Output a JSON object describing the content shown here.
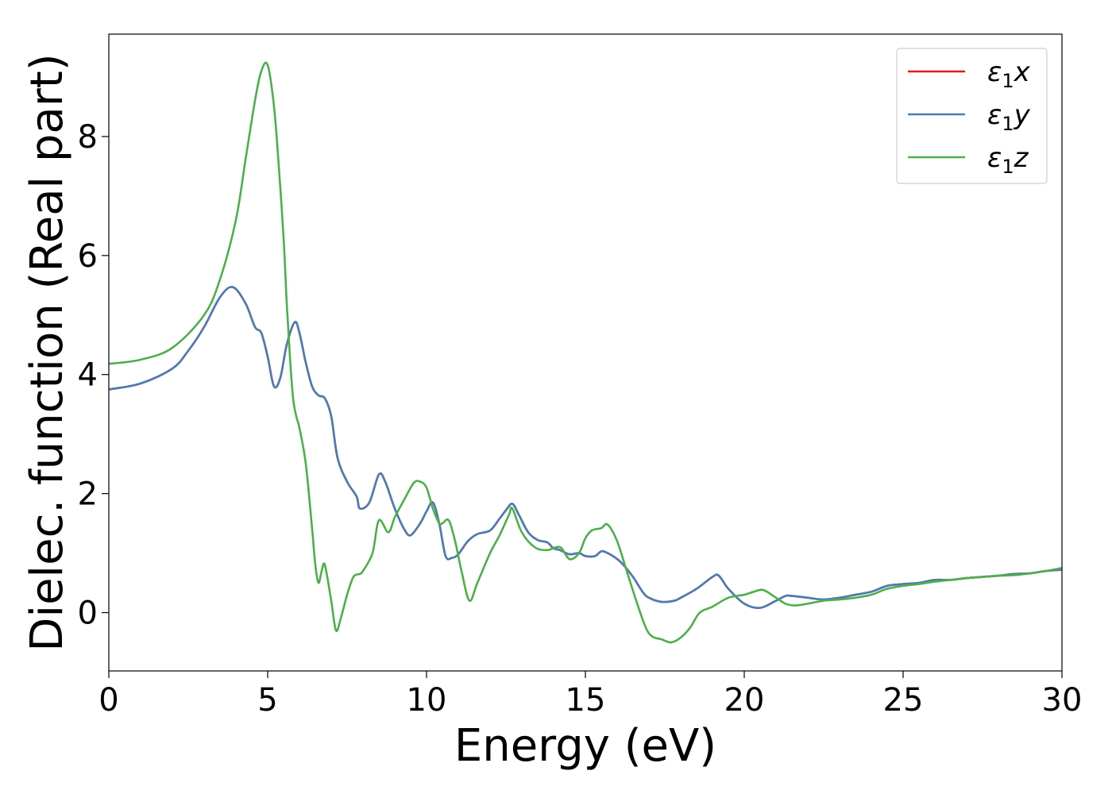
{
  "chart_data": {
    "type": "line",
    "title": "",
    "xlabel": "Energy (eV)",
    "ylabel": "Dielec. function (Real part)",
    "xlim": [
      0,
      30
    ],
    "ylim": [
      -0.98,
      9.72
    ],
    "xticks": [
      0,
      5,
      10,
      15,
      20,
      25,
      30
    ],
    "yticks": [
      0,
      2,
      4,
      6,
      8
    ],
    "grid": false,
    "legend_position": "top-right",
    "series": [
      {
        "name": "ε1x",
        "legend_base": "ε",
        "legend_sub": "1",
        "legend_var": "x",
        "color": "#e41a1c",
        "x": [
          0,
          1,
          2,
          2.5,
          3,
          3.5,
          3.9,
          4.3,
          4.6,
          4.8,
          5.0,
          5.2,
          5.4,
          5.6,
          5.85,
          6.0,
          6.2,
          6.4,
          6.6,
          6.8,
          7.0,
          7.2,
          7.5,
          7.8,
          7.9,
          8.2,
          8.5,
          8.7,
          9.0,
          9.3,
          9.5,
          9.8,
          10.0,
          10.2,
          10.4,
          10.6,
          10.8,
          11.0,
          11.3,
          11.6,
          12.0,
          12.3,
          12.5,
          12.7,
          12.9,
          13.2,
          13.5,
          13.8,
          14.0,
          14.2,
          14.5,
          14.8,
          15.0,
          15.3,
          15.5,
          15.7,
          16.0,
          16.2,
          16.5,
          16.8,
          17.0,
          17.4,
          17.8,
          18.0,
          18.5,
          19.0,
          19.2,
          19.5,
          20.0,
          20.5,
          21.0,
          21.3,
          21.5,
          22.0,
          22.5,
          23.0,
          23.5,
          24.0,
          24.5,
          25.0,
          25.5,
          26.0,
          26.5,
          27.0,
          27.5,
          28.0,
          28.5,
          29.0,
          29.5,
          30.0
        ],
        "y": [
          3.75,
          3.85,
          4.1,
          4.4,
          4.8,
          5.3,
          5.47,
          5.2,
          4.8,
          4.7,
          4.3,
          3.8,
          3.95,
          4.5,
          4.88,
          4.7,
          4.2,
          3.8,
          3.65,
          3.6,
          3.3,
          2.6,
          2.2,
          1.95,
          1.75,
          1.85,
          2.32,
          2.2,
          1.75,
          1.4,
          1.3,
          1.5,
          1.7,
          1.85,
          1.5,
          0.95,
          0.92,
          0.98,
          1.2,
          1.32,
          1.38,
          1.58,
          1.72,
          1.83,
          1.65,
          1.35,
          1.22,
          1.18,
          1.08,
          1.05,
          0.98,
          1.0,
          0.95,
          0.95,
          1.03,
          1.0,
          0.9,
          0.8,
          0.6,
          0.35,
          0.25,
          0.18,
          0.2,
          0.25,
          0.4,
          0.6,
          0.62,
          0.4,
          0.15,
          0.08,
          0.2,
          0.28,
          0.28,
          0.25,
          0.22,
          0.25,
          0.3,
          0.35,
          0.45,
          0.48,
          0.5,
          0.55,
          0.55,
          0.58,
          0.6,
          0.62,
          0.65,
          0.66,
          0.7,
          0.72
        ]
      },
      {
        "name": "ε1y",
        "legend_base": "ε",
        "legend_sub": "1",
        "legend_var": "y",
        "color": "#4a7db5",
        "x": [
          0,
          1,
          2,
          2.5,
          3,
          3.5,
          3.9,
          4.3,
          4.6,
          4.8,
          5.0,
          5.2,
          5.4,
          5.6,
          5.85,
          6.0,
          6.2,
          6.4,
          6.6,
          6.8,
          7.0,
          7.2,
          7.5,
          7.8,
          7.9,
          8.2,
          8.5,
          8.7,
          9.0,
          9.3,
          9.5,
          9.8,
          10.0,
          10.2,
          10.4,
          10.6,
          10.8,
          11.0,
          11.3,
          11.6,
          12.0,
          12.3,
          12.5,
          12.7,
          12.9,
          13.2,
          13.5,
          13.8,
          14.0,
          14.2,
          14.5,
          14.8,
          15.0,
          15.3,
          15.5,
          15.7,
          16.0,
          16.2,
          16.5,
          16.8,
          17.0,
          17.4,
          17.8,
          18.0,
          18.5,
          19.0,
          19.2,
          19.5,
          20.0,
          20.5,
          21.0,
          21.3,
          21.5,
          22.0,
          22.5,
          23.0,
          23.5,
          24.0,
          24.5,
          25.0,
          25.5,
          26.0,
          26.5,
          27.0,
          27.5,
          28.0,
          28.5,
          29.0,
          29.5,
          30.0
        ],
        "y": [
          3.75,
          3.85,
          4.1,
          4.4,
          4.8,
          5.3,
          5.47,
          5.2,
          4.8,
          4.7,
          4.3,
          3.8,
          3.95,
          4.5,
          4.88,
          4.7,
          4.2,
          3.8,
          3.65,
          3.6,
          3.3,
          2.6,
          2.2,
          1.95,
          1.75,
          1.85,
          2.32,
          2.2,
          1.75,
          1.4,
          1.3,
          1.5,
          1.7,
          1.85,
          1.5,
          0.95,
          0.92,
          0.98,
          1.2,
          1.32,
          1.38,
          1.58,
          1.72,
          1.83,
          1.65,
          1.35,
          1.22,
          1.18,
          1.08,
          1.05,
          0.98,
          1.0,
          0.95,
          0.95,
          1.03,
          1.0,
          0.9,
          0.8,
          0.6,
          0.35,
          0.25,
          0.18,
          0.2,
          0.25,
          0.4,
          0.6,
          0.62,
          0.4,
          0.15,
          0.08,
          0.2,
          0.28,
          0.28,
          0.25,
          0.22,
          0.25,
          0.3,
          0.35,
          0.45,
          0.48,
          0.5,
          0.55,
          0.55,
          0.58,
          0.6,
          0.62,
          0.65,
          0.66,
          0.7,
          0.72
        ]
      },
      {
        "name": "ε1z",
        "legend_base": "ε",
        "legend_sub": "1",
        "legend_var": "z",
        "color": "#4daf4a",
        "x": [
          0,
          1,
          2,
          3,
          3.5,
          4.0,
          4.3,
          4.6,
          4.8,
          5.0,
          5.2,
          5.35,
          5.5,
          5.6,
          5.7,
          5.8,
          5.9,
          6.0,
          6.2,
          6.4,
          6.5,
          6.6,
          6.7,
          6.8,
          7.0,
          7.15,
          7.3,
          7.5,
          7.7,
          7.9,
          8.0,
          8.3,
          8.5,
          8.8,
          9.0,
          9.3,
          9.6,
          9.8,
          10.0,
          10.2,
          10.4,
          10.5,
          10.7,
          10.9,
          11.1,
          11.35,
          11.6,
          12.0,
          12.3,
          12.6,
          12.7,
          13.0,
          13.4,
          13.8,
          14.2,
          14.5,
          14.8,
          15.0,
          15.2,
          15.5,
          15.7,
          16.0,
          16.3,
          16.6,
          16.9,
          17.1,
          17.4,
          17.7,
          18.0,
          18.3,
          18.6,
          19.0,
          19.5,
          20.0,
          20.3,
          20.6,
          21.0,
          21.3,
          21.6,
          22.0,
          22.5,
          23.0,
          23.5,
          24.0,
          24.5,
          25.0,
          25.5,
          26.0,
          26.5,
          27.0,
          27.5,
          28.0,
          28.5,
          29.0,
          29.5,
          30.0
        ],
        "y": [
          4.18,
          4.25,
          4.45,
          5.0,
          5.6,
          6.6,
          7.6,
          8.6,
          9.1,
          9.2,
          8.5,
          7.5,
          6.3,
          5.2,
          4.3,
          3.6,
          3.3,
          3.1,
          2.5,
          1.4,
          0.8,
          0.5,
          0.7,
          0.8,
          0.2,
          -0.3,
          -0.1,
          0.3,
          0.6,
          0.65,
          0.7,
          1.0,
          1.55,
          1.35,
          1.6,
          1.9,
          2.18,
          2.2,
          2.1,
          1.75,
          1.5,
          1.5,
          1.55,
          1.2,
          0.7,
          0.2,
          0.5,
          1.0,
          1.3,
          1.65,
          1.75,
          1.35,
          1.1,
          1.05,
          1.1,
          0.9,
          1.0,
          1.25,
          1.38,
          1.42,
          1.48,
          1.2,
          0.7,
          0.2,
          -0.25,
          -0.4,
          -0.45,
          -0.5,
          -0.42,
          -0.25,
          0.0,
          0.1,
          0.25,
          0.3,
          0.35,
          0.38,
          0.25,
          0.15,
          0.12,
          0.15,
          0.2,
          0.22,
          0.25,
          0.3,
          0.4,
          0.45,
          0.48,
          0.52,
          0.55,
          0.58,
          0.6,
          0.62,
          0.63,
          0.66,
          0.7,
          0.75
        ]
      }
    ]
  }
}
